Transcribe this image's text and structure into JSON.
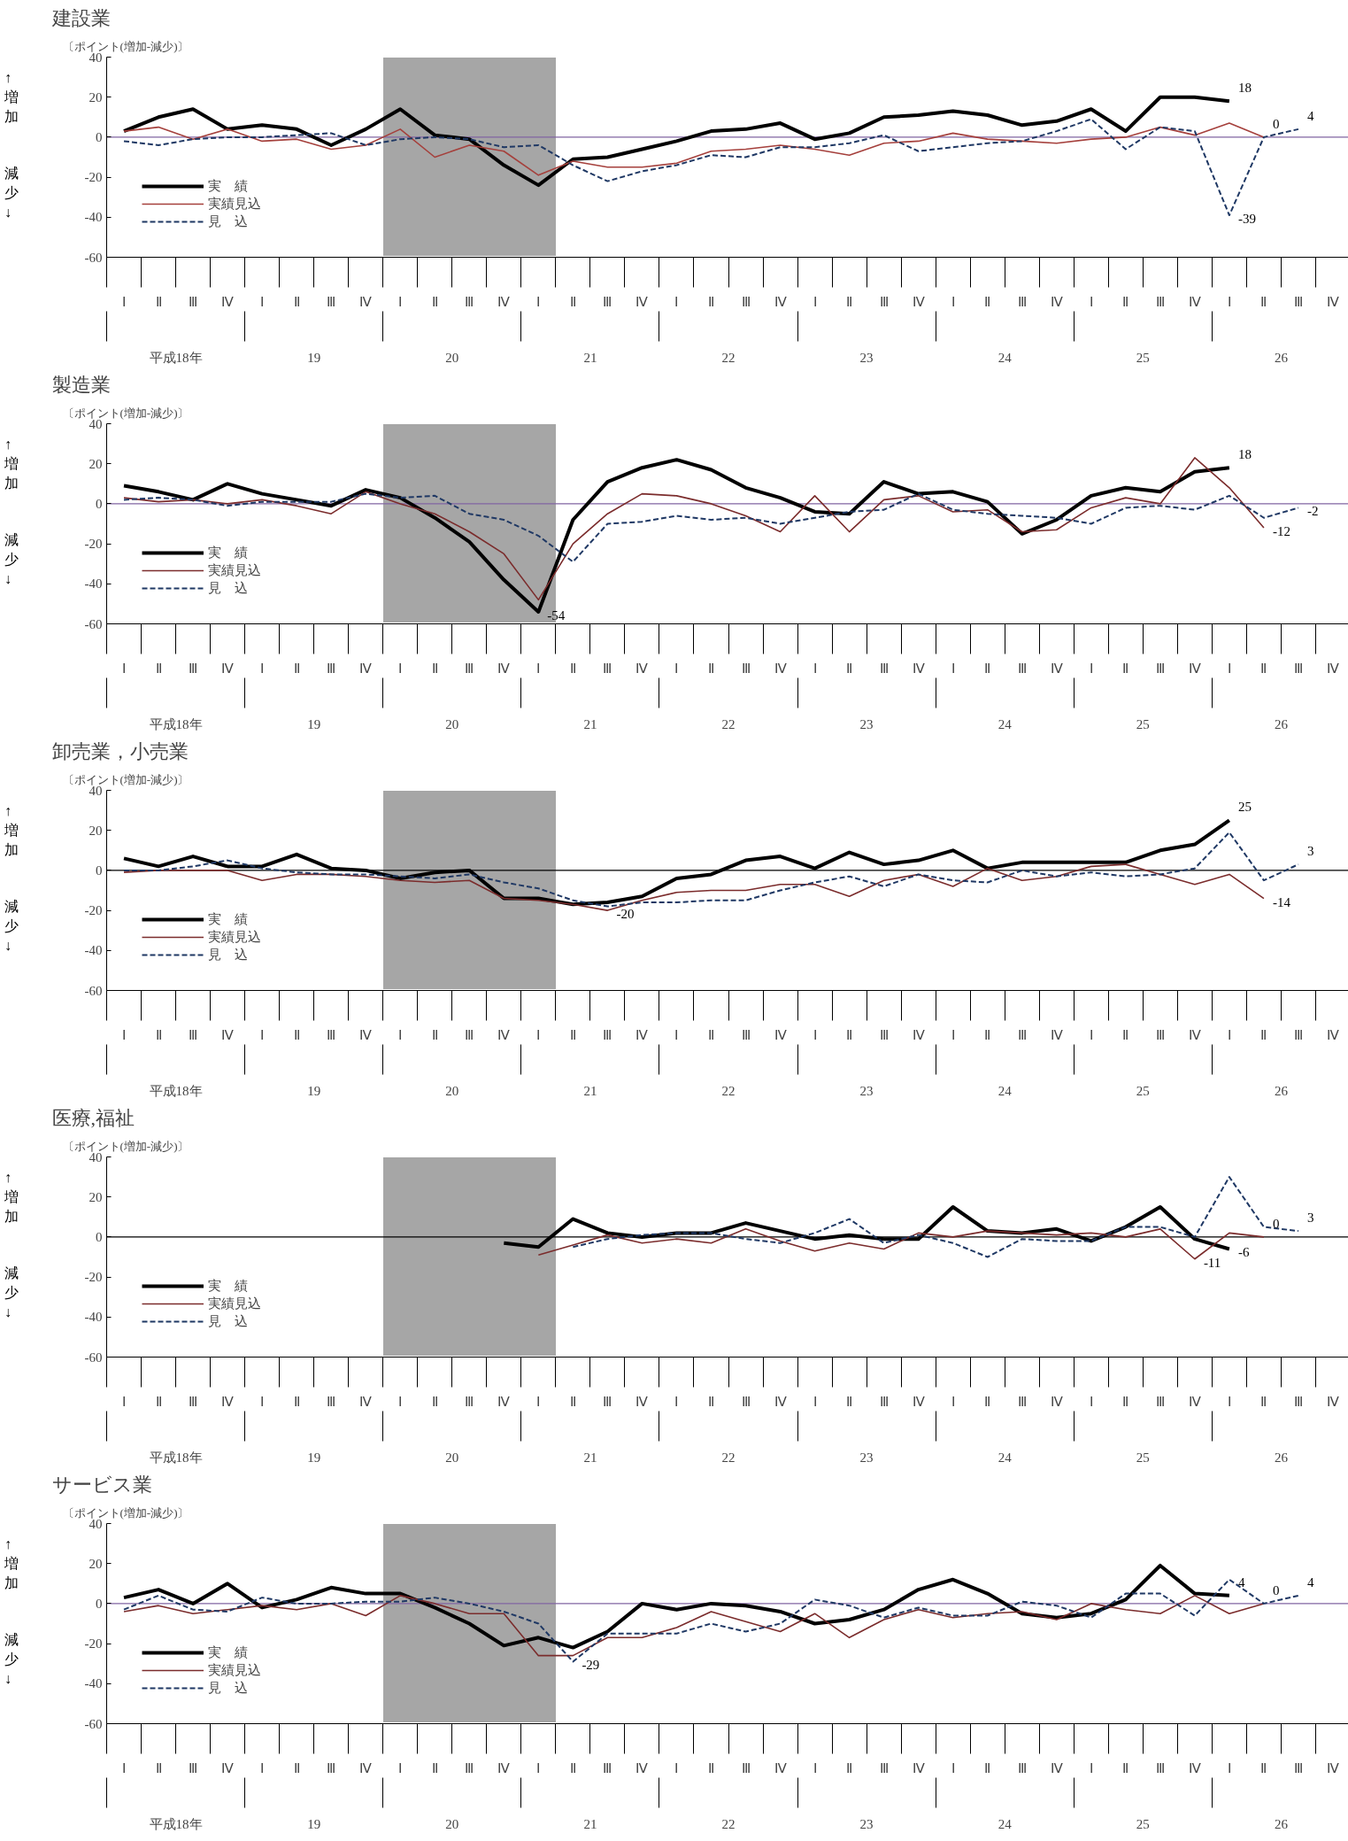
{
  "chart_data": [
    {
      "type": "line",
      "title": "建設業",
      "subtitle": "〔ポイント(増加-減少)〕",
      "categories": [
        "Ⅰ",
        "Ⅱ",
        "Ⅲ",
        "Ⅳ",
        "Ⅰ",
        "Ⅱ",
        "Ⅲ",
        "Ⅳ",
        "Ⅰ",
        "Ⅱ",
        "Ⅲ",
        "Ⅳ",
        "Ⅰ",
        "Ⅱ",
        "Ⅲ",
        "Ⅳ",
        "Ⅰ",
        "Ⅱ",
        "Ⅲ",
        "Ⅳ",
        "Ⅰ",
        "Ⅱ",
        "Ⅲ",
        "Ⅳ",
        "Ⅰ",
        "Ⅱ",
        "Ⅲ",
        "Ⅳ",
        "Ⅰ",
        "Ⅱ",
        "Ⅲ",
        "Ⅳ",
        "Ⅰ",
        "Ⅱ",
        "Ⅲ",
        "Ⅳ"
      ],
      "annotations": [
        "平成18年",
        "19",
        "20",
        "21",
        "22",
        "23",
        "24",
        "25",
        "26",
        "↑増加",
        "減少↓"
      ],
      "ylim": [
        -60,
        40
      ],
      "yticks": [
        -60,
        -40,
        -20,
        0,
        20,
        40
      ],
      "grid": false,
      "legend": "left",
      "ref_lines": [
        {
          "axis": "y",
          "value": 0,
          "color": "#8064a2"
        }
      ],
      "series": [
        {
          "name": "実　績",
          "color": "#000000",
          "line_style": "solid",
          "values": [
            3,
            10,
            14,
            4,
            6,
            4,
            -4,
            4,
            14,
            1,
            -1,
            -14,
            -24,
            -11,
            -10,
            -6,
            -2,
            3,
            4,
            7,
            -1,
            2,
            10,
            11,
            13,
            11,
            6,
            8,
            14,
            3,
            20,
            20,
            18,
            null,
            null,
            null
          ],
          "value_labels": [
            null,
            null,
            null,
            null,
            null,
            null,
            null,
            null,
            null,
            null,
            null,
            null,
            null,
            null,
            null,
            null,
            null,
            null,
            null,
            null,
            null,
            null,
            null,
            null,
            null,
            null,
            null,
            null,
            null,
            null,
            null,
            null,
            "18",
            null,
            null,
            null
          ]
        },
        {
          "name": "実績見込",
          "color": "#a5403c",
          "line_style": "solid",
          "values": [
            3,
            5,
            -1,
            4,
            -2,
            -1,
            -6,
            -4,
            4,
            -10,
            -4,
            -7,
            -19,
            -12,
            -15,
            -15,
            -13,
            -7,
            -6,
            -4,
            -6,
            -9,
            -3,
            -2,
            2,
            -1,
            -2,
            -3,
            -1,
            0,
            5,
            1,
            7,
            0,
            null,
            null
          ],
          "value_labels": [
            null,
            null,
            null,
            null,
            null,
            null,
            null,
            null,
            null,
            null,
            null,
            null,
            null,
            null,
            null,
            null,
            null,
            null,
            null,
            null,
            null,
            null,
            null,
            null,
            null,
            null,
            null,
            null,
            null,
            null,
            null,
            null,
            null,
            "0",
            null,
            null
          ]
        },
        {
          "name": "見　込",
          "color": "#1f3864",
          "line_style": "dashed",
          "values": [
            -2,
            -4,
            -1,
            0,
            0,
            1,
            2,
            -4,
            -1,
            0,
            -1,
            -5,
            -4,
            -14,
            -22,
            -17,
            -14,
            -9,
            -10,
            -5,
            -5,
            -3,
            1,
            -7,
            -5,
            -3,
            -2,
            3,
            9,
            -6,
            5,
            3,
            -39,
            0,
            4,
            null
          ],
          "value_labels": [
            null,
            null,
            null,
            null,
            null,
            null,
            null,
            null,
            null,
            null,
            null,
            null,
            null,
            null,
            null,
            null,
            null,
            null,
            null,
            null,
            null,
            null,
            null,
            null,
            null,
            null,
            null,
            null,
            null,
            null,
            null,
            null,
            "-39",
            null,
            "4",
            null
          ]
        }
      ]
    },
    {
      "type": "line",
      "title": "製造業",
      "subtitle": "〔ポイント(増加-減少)〕",
      "categories": [
        "Ⅰ",
        "Ⅱ",
        "Ⅲ",
        "Ⅳ",
        "Ⅰ",
        "Ⅱ",
        "Ⅲ",
        "Ⅳ",
        "Ⅰ",
        "Ⅱ",
        "Ⅲ",
        "Ⅳ",
        "Ⅰ",
        "Ⅱ",
        "Ⅲ",
        "Ⅳ",
        "Ⅰ",
        "Ⅱ",
        "Ⅲ",
        "Ⅳ",
        "Ⅰ",
        "Ⅱ",
        "Ⅲ",
        "Ⅳ",
        "Ⅰ",
        "Ⅱ",
        "Ⅲ",
        "Ⅳ",
        "Ⅰ",
        "Ⅱ",
        "Ⅲ",
        "Ⅳ",
        "Ⅰ",
        "Ⅱ",
        "Ⅲ",
        "Ⅳ"
      ],
      "annotations": [
        "平成18年",
        "19",
        "20",
        "21",
        "22",
        "23",
        "24",
        "25",
        "26",
        "↑増加",
        "減少↓"
      ],
      "ylim": [
        -60,
        40
      ],
      "yticks": [
        -60,
        -40,
        -20,
        0,
        20,
        40
      ],
      "grid": false,
      "legend": "left",
      "ref_lines": [
        {
          "axis": "y",
          "value": 0,
          "color": "#8064a2"
        }
      ],
      "series": [
        {
          "name": "実　績",
          "color": "#000000",
          "line_style": "solid",
          "values": [
            9,
            6,
            2,
            10,
            5,
            2,
            -1,
            7,
            3,
            -7,
            -19,
            -38,
            -54,
            -8,
            11,
            18,
            22,
            17,
            8,
            3,
            -4,
            -5,
            11,
            5,
            6,
            1,
            -15,
            -8,
            4,
            8,
            6,
            16,
            18,
            null,
            null,
            null
          ],
          "value_labels": [
            null,
            null,
            null,
            null,
            null,
            null,
            null,
            null,
            null,
            null,
            null,
            null,
            "-54",
            null,
            null,
            null,
            null,
            null,
            null,
            null,
            null,
            null,
            null,
            null,
            null,
            null,
            null,
            null,
            null,
            null,
            null,
            null,
            "18",
            null,
            null,
            null
          ]
        },
        {
          "name": "実績見込",
          "color": "#7b2c2c",
          "line_style": "solid",
          "values": [
            3,
            1,
            2,
            0,
            2,
            -1,
            -5,
            6,
            0,
            -5,
            -14,
            -25,
            -48,
            -20,
            -5,
            5,
            4,
            0,
            -6,
            -14,
            4,
            -14,
            2,
            4,
            -4,
            -3,
            -14,
            -13,
            -2,
            3,
            0,
            23,
            8,
            -12,
            null,
            null
          ],
          "value_labels": [
            null,
            null,
            null,
            null,
            null,
            null,
            null,
            null,
            null,
            null,
            null,
            null,
            null,
            null,
            null,
            null,
            null,
            null,
            null,
            null,
            null,
            null,
            null,
            null,
            null,
            null,
            null,
            null,
            null,
            null,
            null,
            null,
            null,
            "-12",
            null,
            null
          ]
        },
        {
          "name": "見　込",
          "color": "#1f3864",
          "line_style": "dashed",
          "values": [
            2,
            3,
            2,
            -1,
            1,
            1,
            1,
            5,
            3,
            4,
            -5,
            -8,
            -16,
            -29,
            -10,
            -9,
            -6,
            -8,
            -7,
            -10,
            -7,
            -4,
            -3,
            5,
            -3,
            -5,
            -6,
            -7,
            -10,
            -2,
            -1,
            -3,
            4,
            -7,
            -2,
            null
          ],
          "value_labels": [
            null,
            null,
            null,
            null,
            null,
            null,
            null,
            null,
            null,
            null,
            null,
            null,
            null,
            null,
            null,
            null,
            null,
            null,
            null,
            null,
            null,
            null,
            null,
            null,
            null,
            null,
            null,
            null,
            null,
            null,
            null,
            null,
            null,
            null,
            "-2",
            null
          ]
        }
      ]
    },
    {
      "type": "line",
      "title": "卸売業，小売業",
      "subtitle": "〔ポイント(増加-減少)〕",
      "categories": [
        "Ⅰ",
        "Ⅱ",
        "Ⅲ",
        "Ⅳ",
        "Ⅰ",
        "Ⅱ",
        "Ⅲ",
        "Ⅳ",
        "Ⅰ",
        "Ⅱ",
        "Ⅲ",
        "Ⅳ",
        "Ⅰ",
        "Ⅱ",
        "Ⅲ",
        "Ⅳ",
        "Ⅰ",
        "Ⅱ",
        "Ⅲ",
        "Ⅳ",
        "Ⅰ",
        "Ⅱ",
        "Ⅲ",
        "Ⅳ",
        "Ⅰ",
        "Ⅱ",
        "Ⅲ",
        "Ⅳ",
        "Ⅰ",
        "Ⅱ",
        "Ⅲ",
        "Ⅳ",
        "Ⅰ",
        "Ⅱ",
        "Ⅲ",
        "Ⅳ"
      ],
      "annotations": [
        "平成18年",
        "19",
        "20",
        "21",
        "22",
        "23",
        "24",
        "25",
        "26",
        "↑増加",
        "減少↓"
      ],
      "ylim": [
        -60,
        40
      ],
      "yticks": [
        -60,
        -40,
        -20,
        0,
        20,
        40
      ],
      "grid": false,
      "legend": "left",
      "ref_lines": [
        {
          "axis": "y",
          "value": 0,
          "color": "#000000"
        }
      ],
      "series": [
        {
          "name": "実　績",
          "color": "#000000",
          "line_style": "solid",
          "values": [
            6,
            2,
            7,
            2,
            2,
            8,
            1,
            0,
            -4,
            -1,
            0,
            -14,
            -14,
            -17,
            -16,
            -13,
            -4,
            -2,
            5,
            7,
            1,
            9,
            3,
            5,
            10,
            1,
            4,
            4,
            4,
            4,
            10,
            13,
            25,
            null,
            null,
            null
          ],
          "value_labels": [
            null,
            null,
            null,
            null,
            null,
            null,
            null,
            null,
            null,
            null,
            null,
            null,
            null,
            null,
            null,
            null,
            null,
            null,
            null,
            null,
            null,
            null,
            null,
            null,
            null,
            null,
            null,
            null,
            null,
            null,
            null,
            null,
            "25",
            null,
            null,
            null
          ]
        },
        {
          "name": "実績見込",
          "color": "#7b2c2c",
          "line_style": "solid",
          "values": [
            -1,
            0,
            0,
            0,
            -5,
            -2,
            -2,
            -3,
            -5,
            -6,
            -5,
            -14,
            -15,
            -17,
            -20,
            -15,
            -11,
            -10,
            -10,
            -7,
            -7,
            -13,
            -5,
            -2,
            -8,
            1,
            -5,
            -3,
            2,
            3,
            -2,
            -7,
            -2,
            -14,
            null,
            null
          ],
          "value_labels": [
            null,
            null,
            null,
            null,
            null,
            null,
            null,
            null,
            null,
            null,
            null,
            null,
            null,
            null,
            "-20",
            null,
            null,
            null,
            null,
            null,
            null,
            null,
            null,
            null,
            null,
            null,
            null,
            null,
            null,
            null,
            null,
            null,
            null,
            "-14",
            null,
            null
          ]
        },
        {
          "name": "見　込",
          "color": "#1f3864",
          "line_style": "dashed",
          "values": [
            0,
            0,
            2,
            5,
            1,
            -1,
            -2,
            -2,
            -3,
            -4,
            -2,
            -6,
            -9,
            -15,
            -18,
            -16,
            -16,
            -15,
            -15,
            -10,
            -6,
            -3,
            -8,
            -2,
            -5,
            -6,
            0,
            -3,
            -1,
            -3,
            -2,
            1,
            19,
            -5,
            3,
            null
          ],
          "value_labels": [
            null,
            null,
            null,
            null,
            null,
            null,
            null,
            null,
            null,
            null,
            null,
            null,
            null,
            null,
            null,
            null,
            null,
            null,
            null,
            null,
            null,
            null,
            null,
            null,
            null,
            null,
            null,
            null,
            null,
            null,
            null,
            null,
            null,
            null,
            "3",
            null
          ]
        }
      ]
    },
    {
      "type": "line",
      "title": "医療,福祉",
      "subtitle": "〔ポイント(増加-減少)〕",
      "categories": [
        "Ⅰ",
        "Ⅱ",
        "Ⅲ",
        "Ⅳ",
        "Ⅰ",
        "Ⅱ",
        "Ⅲ",
        "Ⅳ",
        "Ⅰ",
        "Ⅱ",
        "Ⅲ",
        "Ⅳ",
        "Ⅰ",
        "Ⅱ",
        "Ⅲ",
        "Ⅳ",
        "Ⅰ",
        "Ⅱ",
        "Ⅲ",
        "Ⅳ",
        "Ⅰ",
        "Ⅱ",
        "Ⅲ",
        "Ⅳ",
        "Ⅰ",
        "Ⅱ",
        "Ⅲ",
        "Ⅳ",
        "Ⅰ",
        "Ⅱ",
        "Ⅲ",
        "Ⅳ",
        "Ⅰ",
        "Ⅱ",
        "Ⅲ",
        "Ⅳ"
      ],
      "annotations": [
        "平成18年",
        "19",
        "20",
        "21",
        "22",
        "23",
        "24",
        "25",
        "26",
        "↑増加",
        "減少↓"
      ],
      "ylim": [
        -60,
        40
      ],
      "yticks": [
        -60,
        -40,
        -20,
        0,
        20,
        40
      ],
      "grid": false,
      "legend": "left",
      "ref_lines": [
        {
          "axis": "y",
          "value": 0,
          "color": "#000000"
        }
      ],
      "series": [
        {
          "name": "実　績",
          "color": "#000000",
          "line_style": "solid",
          "values": [
            null,
            null,
            null,
            null,
            null,
            null,
            null,
            null,
            null,
            null,
            null,
            -3,
            -5,
            9,
            2,
            0,
            2,
            2,
            7,
            3,
            -1,
            1,
            -1,
            -1,
            15,
            3,
            2,
            4,
            -2,
            5,
            15,
            -1,
            -6,
            null,
            null,
            null
          ],
          "value_labels": [
            null,
            null,
            null,
            null,
            null,
            null,
            null,
            null,
            null,
            null,
            null,
            null,
            null,
            null,
            null,
            null,
            null,
            null,
            null,
            null,
            null,
            null,
            null,
            null,
            null,
            null,
            null,
            null,
            null,
            null,
            null,
            null,
            "-6",
            null,
            null,
            null
          ]
        },
        {
          "name": "実績見込",
          "color": "#7b2c2c",
          "line_style": "solid",
          "values": [
            null,
            null,
            null,
            null,
            null,
            null,
            null,
            null,
            null,
            null,
            null,
            null,
            -9,
            -4,
            1,
            -3,
            -1,
            -3,
            4,
            -2,
            -7,
            -3,
            -6,
            2,
            0,
            3,
            2,
            1,
            2,
            0,
            4,
            -11,
            2,
            0,
            null,
            null
          ],
          "value_labels": [
            null,
            null,
            null,
            null,
            null,
            null,
            null,
            null,
            null,
            null,
            null,
            null,
            null,
            null,
            null,
            null,
            null,
            null,
            null,
            null,
            null,
            null,
            null,
            null,
            null,
            null,
            null,
            null,
            null,
            null,
            null,
            "-11",
            null,
            "0",
            null,
            null
          ]
        },
        {
          "name": "見　込",
          "color": "#1f3864",
          "line_style": "dashed",
          "values": [
            null,
            null,
            null,
            null,
            null,
            null,
            null,
            null,
            null,
            null,
            null,
            null,
            null,
            -5,
            -1,
            1,
            2,
            2,
            -1,
            -3,
            2,
            9,
            -3,
            1,
            -3,
            -10,
            -1,
            -2,
            -2,
            5,
            5,
            0,
            30,
            5,
            3,
            null
          ],
          "value_labels": [
            null,
            null,
            null,
            null,
            null,
            null,
            null,
            null,
            null,
            null,
            null,
            null,
            null,
            null,
            null,
            null,
            null,
            null,
            null,
            null,
            null,
            null,
            null,
            null,
            null,
            null,
            null,
            null,
            null,
            null,
            null,
            null,
            null,
            null,
            "3",
            null
          ]
        }
      ]
    },
    {
      "type": "line",
      "title": "サービス業",
      "subtitle": "〔ポイント(増加-減少)〕",
      "categories": [
        "Ⅰ",
        "Ⅱ",
        "Ⅲ",
        "Ⅳ",
        "Ⅰ",
        "Ⅱ",
        "Ⅲ",
        "Ⅳ",
        "Ⅰ",
        "Ⅱ",
        "Ⅲ",
        "Ⅳ",
        "Ⅰ",
        "Ⅱ",
        "Ⅲ",
        "Ⅳ",
        "Ⅰ",
        "Ⅱ",
        "Ⅲ",
        "Ⅳ",
        "Ⅰ",
        "Ⅱ",
        "Ⅲ",
        "Ⅳ",
        "Ⅰ",
        "Ⅱ",
        "Ⅲ",
        "Ⅳ",
        "Ⅰ",
        "Ⅱ",
        "Ⅲ",
        "Ⅳ",
        "Ⅰ",
        "Ⅱ",
        "Ⅲ",
        "Ⅳ"
      ],
      "annotations": [
        "平成18年",
        "19",
        "20",
        "21",
        "22",
        "23",
        "24",
        "25",
        "26",
        "↑増加",
        "減少↓"
      ],
      "ylim": [
        -60,
        40
      ],
      "yticks": [
        -60,
        -40,
        -20,
        0,
        20,
        40
      ],
      "grid": false,
      "legend": "left",
      "ref_lines": [
        {
          "axis": "y",
          "value": 0,
          "color": "#8064a2"
        }
      ],
      "series": [
        {
          "name": "実　績",
          "color": "#000000",
          "line_style": "solid",
          "values": [
            3,
            7,
            0,
            10,
            -2,
            2,
            8,
            5,
            5,
            -2,
            -10,
            -21,
            -17,
            -22,
            -14,
            0,
            -3,
            0,
            -1,
            -4,
            -10,
            -8,
            -3,
            7,
            12,
            5,
            -5,
            -7,
            -5,
            2,
            19,
            5,
            4,
            null,
            null,
            null
          ],
          "value_labels": [
            null,
            null,
            null,
            null,
            null,
            null,
            null,
            null,
            null,
            null,
            null,
            null,
            null,
            null,
            null,
            null,
            null,
            null,
            null,
            null,
            null,
            null,
            null,
            null,
            null,
            null,
            null,
            null,
            null,
            null,
            null,
            null,
            "4",
            null,
            null,
            null
          ]
        },
        {
          "name": "実績見込",
          "color": "#7b2c2c",
          "line_style": "solid",
          "values": [
            -4,
            -1,
            -5,
            -3,
            -1,
            -3,
            0,
            -6,
            4,
            0,
            -5,
            -5,
            -26,
            -26,
            -17,
            -17,
            -12,
            -4,
            -9,
            -14,
            -5,
            -17,
            -8,
            -3,
            -7,
            -5,
            -4,
            -8,
            0,
            -3,
            -5,
            4,
            -5,
            0,
            null,
            null
          ],
          "value_labels": [
            null,
            null,
            null,
            null,
            null,
            null,
            null,
            null,
            null,
            null,
            null,
            null,
            null,
            null,
            null,
            null,
            null,
            null,
            null,
            null,
            null,
            null,
            null,
            null,
            null,
            null,
            null,
            null,
            null,
            null,
            null,
            null,
            null,
            "0",
            null,
            null
          ]
        },
        {
          "name": "見　込",
          "color": "#1f3864",
          "line_style": "dashed",
          "values": [
            -3,
            4,
            -3,
            -4,
            3,
            0,
            0,
            1,
            1,
            3,
            0,
            -4,
            -10,
            -29,
            -15,
            -15,
            -15,
            -10,
            -14,
            -10,
            2,
            -1,
            -7,
            -2,
            -6,
            -6,
            1,
            -1,
            -7,
            5,
            5,
            -6,
            12,
            0,
            4,
            null
          ],
          "value_labels": [
            null,
            null,
            null,
            null,
            null,
            null,
            null,
            null,
            null,
            null,
            null,
            null,
            null,
            "-29",
            null,
            null,
            null,
            null,
            null,
            null,
            null,
            null,
            null,
            null,
            null,
            null,
            null,
            null,
            null,
            null,
            null,
            null,
            null,
            null,
            "4",
            null
          ]
        }
      ]
    }
  ]
}
